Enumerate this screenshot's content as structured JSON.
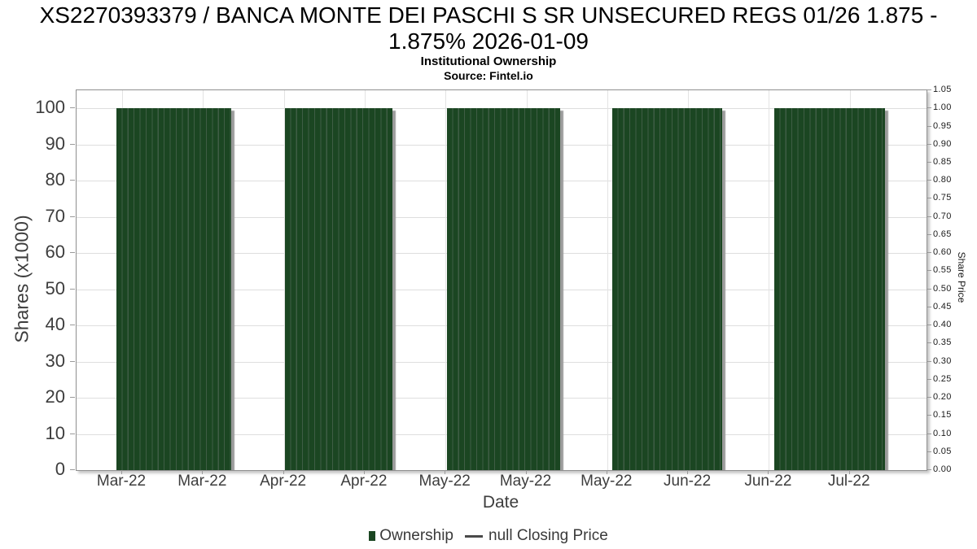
{
  "header": {
    "title": "XS2270393379 / BANCA MONTE DEI PASCHI S SR UNSECURED REGS 01/26 1.875 - 1.875% 2026-01-09",
    "subtitle": "Institutional Ownership",
    "source": "Source: Fintel.io"
  },
  "chart_data": {
    "type": "bar",
    "title": "XS2270393379 / BANCA MONTE DEI PASCHI S SR UNSECURED REGS 01/26 1.875 - 1.875% 2026-01-09",
    "subtitle": "Institutional Ownership",
    "source": "Source: Fintel.io",
    "xlabel": "Date",
    "ylabel_left": "Shares (x1000)",
    "ylabel_right": "Share Price",
    "x_tick_labels": [
      "Mar-22",
      "Mar-22",
      "Apr-22",
      "Apr-22",
      "May-22",
      "May-22",
      "May-22",
      "Jun-22",
      "Jun-22",
      "Jul-22"
    ],
    "y_left_ticks": [
      0,
      10,
      20,
      30,
      40,
      50,
      60,
      70,
      80,
      90,
      100
    ],
    "y_left_range": [
      0,
      105
    ],
    "y_right_ticks": [
      "0.00",
      "0.05",
      "0.10",
      "0.15",
      "0.20",
      "0.25",
      "0.30",
      "0.35",
      "0.40",
      "0.45",
      "0.50",
      "0.55",
      "0.60",
      "0.65",
      "0.70",
      "0.75",
      "0.80",
      "0.85",
      "0.90",
      "0.95",
      "1.00",
      "1.05"
    ],
    "y_right_range": [
      0,
      1.05
    ],
    "grid": true,
    "legend_position": "bottom-center",
    "series": [
      {
        "name": "Ownership",
        "type": "bar",
        "color": "#1b4622",
        "values": [
          100,
          100,
          100,
          100,
          100
        ]
      },
      {
        "name": "null Closing Price",
        "type": "line",
        "color": "#4a4a4a",
        "values": []
      }
    ]
  },
  "legend": {
    "items": [
      {
        "label": "Ownership",
        "marker": "square",
        "color": "#1b4622"
      },
      {
        "label": "null Closing Price",
        "marker": "dash",
        "color": "#4a4a4a"
      }
    ]
  },
  "colors": {
    "bar": "#1b4622",
    "bar_stripe": "#3f5d45",
    "gridline": "#dedede",
    "plot_border": "#8f8f8f",
    "tick_text": "#3d3d3d",
    "title_text": "#000000"
  }
}
